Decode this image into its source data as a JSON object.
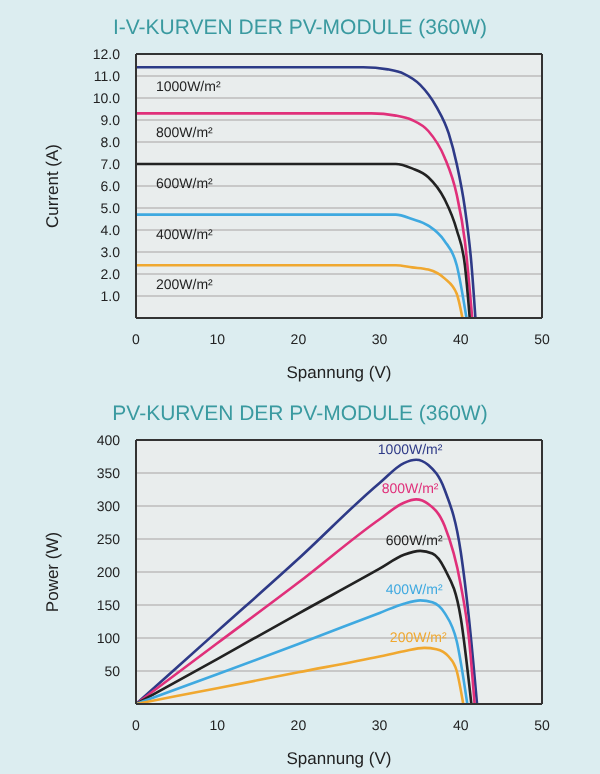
{
  "chart_data": [
    {
      "type": "line",
      "title": "I-V-KURVEN DER PV-MODULE (360W)",
      "xlabel": "Spannung (V)",
      "ylabel": "Current (A)",
      "xlim": [
        0,
        50
      ],
      "xticks": [
        0,
        10,
        20,
        30,
        40,
        50
      ],
      "ylim": [
        0,
        12
      ],
      "yticks": [
        {
          "value": 1,
          "label": "1.0"
        },
        {
          "value": 2,
          "label": "2.0"
        },
        {
          "value": 3,
          "label": "3.0"
        },
        {
          "value": 4,
          "label": "4.0"
        },
        {
          "value": 5,
          "label": "5.0"
        },
        {
          "value": 6,
          "label": "6.0"
        },
        {
          "value": 7,
          "label": "7.0"
        },
        {
          "value": 8,
          "label": "8.0"
        },
        {
          "value": 9,
          "label": "9.0"
        },
        {
          "value": 10,
          "label": "10.0"
        },
        {
          "value": 11,
          "label": "11.0"
        },
        {
          "value": 12,
          "label": "12.0"
        }
      ],
      "grid": "y",
      "marker": "none",
      "line_style": "solid",
      "series": [
        {
          "name": "1000W/m²",
          "color": "#2e3a87",
          "x": [
            0,
            10,
            20,
            28,
            31,
            33,
            35,
            37,
            38.5,
            39.5,
            40.5,
            41.3,
            41.8
          ],
          "values": [
            11.4,
            11.4,
            11.4,
            11.4,
            11.3,
            11.1,
            10.6,
            9.6,
            8.4,
            7.0,
            5.0,
            2.5,
            0
          ]
        },
        {
          "name": "800W/m²",
          "color": "#e0307a",
          "x": [
            0,
            10,
            20,
            29,
            32,
            34,
            36,
            38,
            39.5,
            40.5,
            41.4
          ],
          "values": [
            9.3,
            9.3,
            9.3,
            9.3,
            9.2,
            9.0,
            8.5,
            7.3,
            5.6,
            3.5,
            0
          ]
        },
        {
          "name": "600W/m²",
          "color": "#222222",
          "x": [
            0,
            10,
            20,
            30,
            32,
            34,
            36,
            38,
            39.5,
            40.5,
            41.1
          ],
          "values": [
            7.0,
            7.0,
            7.0,
            7.0,
            7.0,
            6.8,
            6.4,
            5.4,
            4.0,
            2.4,
            0
          ]
        },
        {
          "name": "400W/m²",
          "color": "#3fa9e0",
          "x": [
            0,
            10,
            20,
            30,
            32,
            34,
            36,
            38,
            39.5,
            40.7
          ],
          "values": [
            4.7,
            4.7,
            4.7,
            4.7,
            4.7,
            4.5,
            4.2,
            3.5,
            2.4,
            0
          ]
        },
        {
          "name": "200W/m²",
          "color": "#f0a830",
          "x": [
            0,
            10,
            20,
            30,
            32,
            34,
            36,
            38,
            39.5,
            40.2
          ],
          "values": [
            2.4,
            2.4,
            2.4,
            2.4,
            2.4,
            2.3,
            2.2,
            1.8,
            1.1,
            0
          ]
        }
      ]
    },
    {
      "type": "line",
      "title": "PV-KURVEN DER PV-MODULE (360W)",
      "xlabel": "Spannung (V)",
      "ylabel": "Power (W)",
      "xlim": [
        0,
        50
      ],
      "xticks": [
        0,
        10,
        20,
        30,
        40,
        50
      ],
      "ylim": [
        0,
        400
      ],
      "yticks": [
        50,
        100,
        150,
        200,
        250,
        300,
        350,
        400
      ],
      "grid": "y",
      "marker": "none",
      "line_style": "solid",
      "series": [
        {
          "name": "1000W/m²",
          "color": "#2e3a87",
          "x": [
            0,
            10,
            20,
            30,
            33,
            34.5,
            36,
            38,
            40,
            41,
            42
          ],
          "values": [
            0,
            110,
            220,
            335,
            365,
            370,
            362,
            325,
            230,
            130,
            0
          ]
        },
        {
          "name": "800W/m²",
          "color": "#e0307a",
          "x": [
            0,
            10,
            20,
            30,
            33,
            34.5,
            36,
            38,
            40,
            41,
            41.7
          ],
          "values": [
            0,
            92,
            184,
            280,
            305,
            310,
            303,
            270,
            180,
            100,
            0
          ]
        },
        {
          "name": "600W/m²",
          "color": "#222222",
          "x": [
            0,
            10,
            20,
            30,
            33,
            35,
            36.5,
            38,
            40,
            41.3
          ],
          "values": [
            0,
            68,
            137,
            205,
            226,
            232,
            228,
            205,
            130,
            0
          ]
        },
        {
          "name": "400W/m²",
          "color": "#3fa9e0",
          "x": [
            0,
            10,
            20,
            30,
            33,
            35,
            36.5,
            38,
            39.5,
            40.8
          ],
          "values": [
            0,
            45,
            91,
            138,
            152,
            157,
            154,
            138,
            95,
            0
          ]
        },
        {
          "name": "200W/m²",
          "color": "#f0a830",
          "x": [
            0,
            10,
            20,
            30,
            33,
            35.5,
            37,
            38.5,
            39.5,
            40.3
          ],
          "values": [
            0,
            24,
            48,
            72,
            80,
            85,
            83,
            72,
            50,
            0
          ]
        }
      ]
    }
  ]
}
